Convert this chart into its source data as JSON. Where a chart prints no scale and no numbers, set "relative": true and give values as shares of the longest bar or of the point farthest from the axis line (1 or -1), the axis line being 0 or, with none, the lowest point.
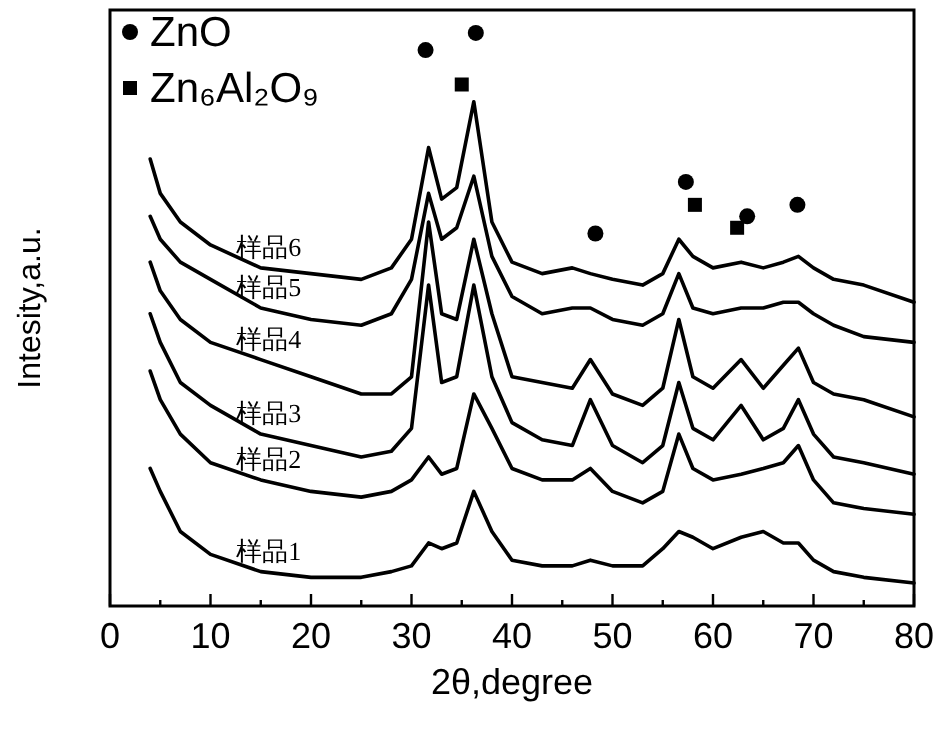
{
  "chart_data": {
    "type": "line",
    "relative": true,
    "xlabel": "2θ,degree",
    "ylabel": "Intesity,a.u.",
    "xlim": [
      0,
      80
    ],
    "xticks": [
      0,
      {
        "value": 5,
        "label": null
      },
      10,
      {
        "value": 15,
        "label": null
      },
      20,
      {
        "value": 25,
        "label": null
      },
      30,
      {
        "value": 35,
        "label": null
      },
      40,
      {
        "value": 45,
        "label": null
      },
      50,
      {
        "value": 55,
        "label": null
      },
      60,
      {
        "value": 65,
        "label": null
      },
      70,
      {
        "value": 75,
        "label": null
      },
      80
    ],
    "legend": "top left",
    "grid": false,
    "line_style": "solid",
    "x": [
      4,
      5,
      7,
      10,
      15,
      20,
      25,
      28,
      30,
      31.7,
      33,
      34.5,
      36.2,
      38,
      40,
      43,
      46,
      47.8,
      50,
      53,
      55,
      56.6,
      58,
      60,
      62.8,
      65,
      67,
      68.5,
      70,
      72,
      75,
      80
    ],
    "series": [
      {
        "name": "样品1",
        "color": "#000000",
        "type": "line",
        "values": [
          0.24,
          0.2,
          0.13,
          0.09,
          0.06,
          0.05,
          0.05,
          0.06,
          0.07,
          0.11,
          0.1,
          0.11,
          0.2,
          0.13,
          0.08,
          0.07,
          0.07,
          0.08,
          0.07,
          0.07,
          0.1,
          0.13,
          0.12,
          0.1,
          0.12,
          0.13,
          0.11,
          0.11,
          0.08,
          0.06,
          0.05,
          0.04
        ]
      },
      {
        "name": "样品2",
        "color": "#000000",
        "type": "line",
        "values": [
          0.41,
          0.36,
          0.3,
          0.25,
          0.22,
          0.2,
          0.19,
          0.2,
          0.22,
          0.26,
          0.23,
          0.24,
          0.37,
          0.31,
          0.24,
          0.22,
          0.22,
          0.24,
          0.2,
          0.18,
          0.2,
          0.3,
          0.24,
          0.22,
          0.23,
          0.24,
          0.25,
          0.28,
          0.22,
          0.18,
          0.17,
          0.16
        ]
      },
      {
        "name": "样品3",
        "color": "#000000",
        "type": "line",
        "values": [
          0.51,
          0.46,
          0.39,
          0.35,
          0.3,
          0.28,
          0.26,
          0.27,
          0.31,
          0.56,
          0.39,
          0.4,
          0.56,
          0.4,
          0.32,
          0.29,
          0.28,
          0.36,
          0.28,
          0.25,
          0.28,
          0.39,
          0.31,
          0.29,
          0.35,
          0.29,
          0.31,
          0.36,
          0.3,
          0.26,
          0.25,
          0.23
        ]
      },
      {
        "name": "样品4",
        "color": "#000000",
        "type": "line",
        "values": [
          0.6,
          0.55,
          0.5,
          0.46,
          0.43,
          0.4,
          0.37,
          0.37,
          0.4,
          0.67,
          0.51,
          0.5,
          0.64,
          0.51,
          0.4,
          0.39,
          0.38,
          0.43,
          0.37,
          0.35,
          0.38,
          0.5,
          0.4,
          0.38,
          0.43,
          0.38,
          0.42,
          0.45,
          0.39,
          0.37,
          0.36,
          0.33
        ]
      },
      {
        "name": "样品5",
        "color": "#000000",
        "type": "line",
        "values": [
          0.68,
          0.64,
          0.6,
          0.57,
          0.52,
          0.5,
          0.49,
          0.51,
          0.57,
          0.72,
          0.64,
          0.66,
          0.75,
          0.61,
          0.54,
          0.51,
          0.52,
          0.52,
          0.5,
          0.49,
          0.51,
          0.58,
          0.52,
          0.51,
          0.52,
          0.52,
          0.53,
          0.53,
          0.51,
          0.49,
          0.47,
          0.46
        ]
      },
      {
        "name": "样品6",
        "color": "#000000",
        "type": "line",
        "values": [
          0.78,
          0.72,
          0.67,
          0.63,
          0.59,
          0.58,
          0.57,
          0.59,
          0.64,
          0.8,
          0.71,
          0.73,
          0.88,
          0.67,
          0.6,
          0.58,
          0.59,
          0.58,
          0.57,
          0.56,
          0.58,
          0.64,
          0.61,
          0.59,
          0.6,
          0.59,
          0.6,
          0.61,
          0.59,
          0.57,
          0.56,
          0.53
        ]
      },
      {
        "name": "ZnO",
        "color": "#000000",
        "type": "scatter",
        "marker": "circle",
        "x": [
          31.4,
          36.4,
          48.3,
          57.3,
          63.4,
          68.4
        ],
        "values": [
          0.97,
          1.0,
          0.65,
          0.74,
          0.68,
          0.7
        ]
      },
      {
        "name": "Zn₆Al₂O₉",
        "color": "#000000",
        "type": "scatter",
        "marker": "square",
        "x": [
          35,
          58.2,
          62.4
        ],
        "values": [
          0.91,
          0.7,
          0.66
        ]
      }
    ]
  }
}
